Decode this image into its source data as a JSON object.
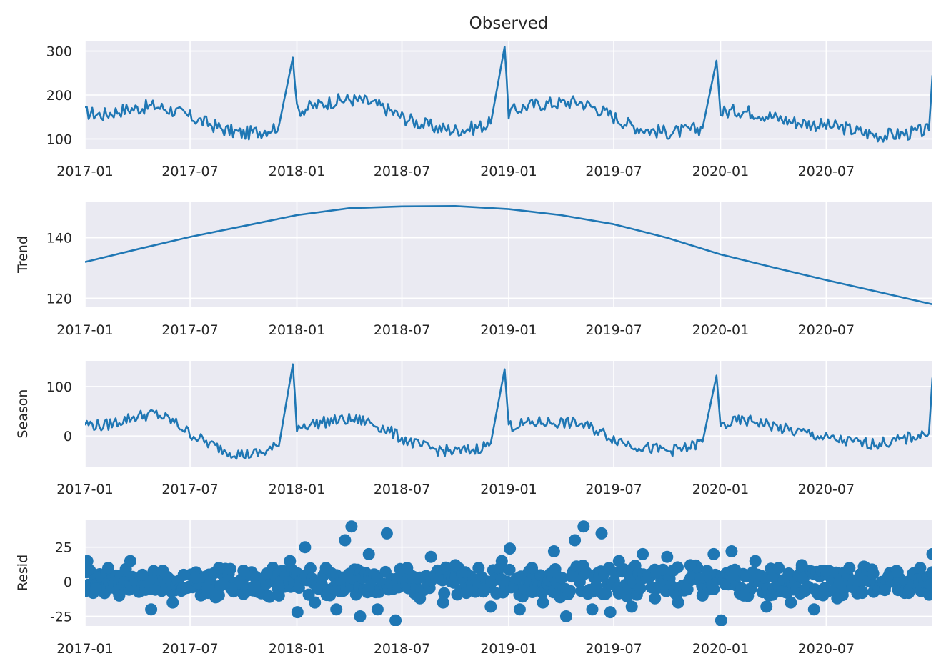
{
  "chart_data": [
    {
      "type": "line",
      "title": "Observed",
      "ylabel": "",
      "x_range": [
        "2017-01-01",
        "2020-12-31"
      ],
      "ylim": [
        78,
        322
      ],
      "y_ticks": [
        100,
        200,
        300
      ],
      "x_tick_labels": [
        "2017-01",
        "2017-07",
        "2018-01",
        "2018-07",
        "2019-01",
        "2019-07",
        "2020-01",
        "2020-07"
      ],
      "grid": true,
      "series": [
        {
          "color": "#1f77b4",
          "x": [
            "2017-01-01",
            "2017-02-01",
            "2017-03-01",
            "2017-04-01",
            "2017-05-01",
            "2017-06-01",
            "2017-07-01",
            "2017-08-01",
            "2017-09-01",
            "2017-10-01",
            "2017-11-01",
            "2017-12-01",
            "2017-12-25",
            "2018-01-01",
            "2018-02-01",
            "2018-03-01",
            "2018-04-01",
            "2018-05-01",
            "2018-06-01",
            "2018-07-01",
            "2018-08-01",
            "2018-09-01",
            "2018-10-01",
            "2018-11-01",
            "2018-12-01",
            "2018-12-25",
            "2019-01-01",
            "2019-02-01",
            "2019-03-01",
            "2019-04-01",
            "2019-05-01",
            "2019-06-01",
            "2019-07-01",
            "2019-08-01",
            "2019-09-01",
            "2019-10-01",
            "2019-11-01",
            "2019-12-01",
            "2019-12-25",
            "2020-01-01",
            "2020-02-01",
            "2020-03-01",
            "2020-04-01",
            "2020-05-01",
            "2020-06-01",
            "2020-07-01",
            "2020-08-01",
            "2020-09-01",
            "2020-10-01",
            "2020-11-01",
            "2020-12-01",
            "2020-12-25",
            "2020-12-31"
          ],
          "values": [
            160,
            155,
            165,
            170,
            175,
            165,
            150,
            135,
            120,
            112,
            118,
            130,
            285,
            165,
            175,
            185,
            190,
            185,
            170,
            150,
            135,
            125,
            120,
            125,
            135,
            310,
            160,
            175,
            180,
            182,
            185,
            170,
            150,
            130,
            120,
            115,
            118,
            125,
            278,
            160,
            165,
            160,
            150,
            140,
            135,
            130,
            125,
            115,
            108,
            110,
            115,
            120,
            245
          ]
        }
      ]
    },
    {
      "type": "line",
      "title": "",
      "ylabel": "Trend",
      "x_range": [
        "2017-01-01",
        "2020-12-31"
      ],
      "ylim": [
        117,
        152
      ],
      "y_ticks": [
        120,
        140
      ],
      "x_tick_labels": [
        "2017-01",
        "2017-07",
        "2018-01",
        "2018-07",
        "2019-01",
        "2019-07",
        "2020-01",
        "2020-07"
      ],
      "grid": true,
      "series": [
        {
          "color": "#1f77b4",
          "x": [
            "2017-01-01",
            "2017-04-01",
            "2017-07-01",
            "2017-10-01",
            "2018-01-01",
            "2018-04-01",
            "2018-07-01",
            "2018-10-01",
            "2019-01-01",
            "2019-04-01",
            "2019-07-01",
            "2019-10-01",
            "2020-01-01",
            "2020-04-01",
            "2020-07-01",
            "2020-10-01",
            "2020-12-31"
          ],
          "values": [
            132,
            136.2,
            140.3,
            143.9,
            147.5,
            149.8,
            150.4,
            150.5,
            149.5,
            147.5,
            144.5,
            140,
            134.5,
            130.2,
            126,
            122,
            118
          ]
        }
      ]
    },
    {
      "type": "line",
      "title": "",
      "ylabel": "Season",
      "x_range": [
        "2017-01-01",
        "2020-12-31"
      ],
      "ylim": [
        -62,
        152
      ],
      "y_ticks": [
        0,
        100
      ],
      "x_tick_labels": [
        "2017-01",
        "2017-07",
        "2018-01",
        "2018-07",
        "2019-01",
        "2019-07",
        "2020-01",
        "2020-07"
      ],
      "grid": true,
      "series": [
        {
          "color": "#1f77b4",
          "x": [
            "2017-01-01",
            "2017-02-01",
            "2017-03-01",
            "2017-04-01",
            "2017-05-01",
            "2017-06-01",
            "2017-07-01",
            "2017-08-01",
            "2017-09-01",
            "2017-10-01",
            "2017-11-01",
            "2017-12-01",
            "2017-12-25",
            "2018-01-01",
            "2018-02-01",
            "2018-03-01",
            "2018-04-01",
            "2018-05-01",
            "2018-06-01",
            "2018-07-01",
            "2018-08-01",
            "2018-09-01",
            "2018-10-01",
            "2018-11-01",
            "2018-12-01",
            "2018-12-25",
            "2019-01-01",
            "2019-02-01",
            "2019-03-01",
            "2019-04-01",
            "2019-05-01",
            "2019-06-01",
            "2019-07-01",
            "2019-08-01",
            "2019-09-01",
            "2019-10-01",
            "2019-11-01",
            "2019-12-01",
            "2019-12-25",
            "2020-01-01",
            "2020-02-01",
            "2020-03-01",
            "2020-04-01",
            "2020-05-01",
            "2020-06-01",
            "2020-07-01",
            "2020-08-01",
            "2020-09-01",
            "2020-10-01",
            "2020-11-01",
            "2020-12-01",
            "2020-12-25",
            "2020-12-31"
          ],
          "values": [
            25,
            20,
            30,
            40,
            45,
            30,
            5,
            -15,
            -30,
            -38,
            -35,
            -20,
            145,
            20,
            25,
            30,
            33,
            30,
            15,
            -5,
            -20,
            -28,
            -32,
            -28,
            -15,
            135,
            20,
            25,
            28,
            27,
            25,
            12,
            -5,
            -18,
            -25,
            -30,
            -26,
            -12,
            122,
            20,
            30,
            30,
            20,
            10,
            5,
            -5,
            -10,
            -15,
            -15,
            -10,
            0,
            5,
            118
          ]
        }
      ]
    },
    {
      "type": "scatter",
      "title": "",
      "ylabel": "Resid",
      "x_range": [
        "2017-01-01",
        "2020-12-31"
      ],
      "ylim": [
        -32,
        45
      ],
      "y_ticks": [
        -25,
        0,
        25
      ],
      "x_tick_labels": [
        "2017-01",
        "2017-07",
        "2018-01",
        "2018-07",
        "2019-01",
        "2019-07",
        "2020-01",
        "2020-07"
      ],
      "grid": true,
      "series": [
        {
          "color": "#1f77b4",
          "x": [
            "2017-01-05",
            "2017-01-20",
            "2017-02-10",
            "2017-03-01",
            "2017-03-20",
            "2017-04-10",
            "2017-04-25",
            "2017-05-15",
            "2017-06-01",
            "2017-06-20",
            "2017-07-10",
            "2017-08-01",
            "2017-08-20",
            "2017-09-10",
            "2017-10-01",
            "2017-10-20",
            "2017-11-10",
            "2017-12-01",
            "2017-12-20",
            "2018-01-02",
            "2018-01-15",
            "2018-02-01",
            "2018-02-20",
            "2018-03-10",
            "2018-03-25",
            "2018-04-05",
            "2018-04-20",
            "2018-05-05",
            "2018-05-20",
            "2018-06-05",
            "2018-06-20",
            "2018-07-10",
            "2018-08-01",
            "2018-08-20",
            "2018-09-10",
            "2018-10-01",
            "2018-10-20",
            "2018-11-10",
            "2018-12-01",
            "2018-12-20",
            "2019-01-03",
            "2019-01-20",
            "2019-02-10",
            "2019-03-01",
            "2019-03-20",
            "2019-04-10",
            "2019-04-25",
            "2019-05-10",
            "2019-05-25",
            "2019-06-10",
            "2019-06-25",
            "2019-07-10",
            "2019-08-01",
            "2019-08-20",
            "2019-09-10",
            "2019-10-01",
            "2019-10-20",
            "2019-11-10",
            "2019-12-01",
            "2019-12-20",
            "2020-01-02",
            "2020-01-20",
            "2020-02-10",
            "2020-03-01",
            "2020-03-20",
            "2020-04-10",
            "2020-05-01",
            "2020-05-20",
            "2020-06-10",
            "2020-07-01",
            "2020-07-20",
            "2020-08-10",
            "2020-09-01",
            "2020-09-20",
            "2020-10-10",
            "2020-11-01",
            "2020-11-20",
            "2020-12-10",
            "2020-12-31"
          ],
          "values": [
            15,
            -5,
            10,
            -10,
            15,
            5,
            -20,
            8,
            -15,
            5,
            3,
            -8,
            10,
            -5,
            8,
            -3,
            6,
            -10,
            15,
            -22,
            25,
            -15,
            10,
            -20,
            30,
            40,
            -25,
            20,
            -20,
            35,
            -28,
            10,
            -12,
            18,
            -15,
            12,
            -8,
            10,
            -18,
            15,
            24,
            -20,
            10,
            -15,
            22,
            -25,
            30,
            40,
            -20,
            35,
            -22,
            15,
            -18,
            20,
            -12,
            18,
            -15,
            12,
            -10,
            20,
            -28,
            22,
            -10,
            15,
            -18,
            10,
            -15,
            12,
            -20,
            8,
            -12,
            10,
            -8,
            6,
            -6,
            7,
            -8,
            10,
            20
          ]
        }
      ]
    }
  ]
}
